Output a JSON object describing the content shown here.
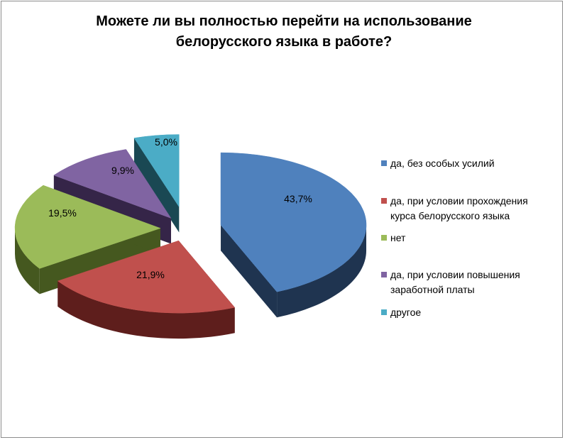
{
  "title_lines": [
    "Можете ли  вы полностью перейти на использование",
    "белорусского языка в работе?"
  ],
  "chart_data": {
    "type": "pie",
    "title": "Можете ли  вы полностью перейти на использование белорусского языка в работе?",
    "exploded": true,
    "three_d": true,
    "legend_position": "right",
    "slices": [
      {
        "label_lines": [
          "да, без особых усилий"
        ],
        "value": 43.7,
        "value_label": "43,7%",
        "color": "#4f81bd",
        "side_color": "#1f3450"
      },
      {
        "label_lines": [
          "да, при условии прохождения",
          "курса белорусского языка"
        ],
        "value": 21.9,
        "value_label": "21,9%",
        "color": "#c0504d",
        "side_color": "#5e1e1c"
      },
      {
        "label_lines": [
          "нет"
        ],
        "value": 19.5,
        "value_label": "19,5%",
        "color": "#9bbb59",
        "side_color": "#45581f"
      },
      {
        "label_lines": [
          "да, при условии повышения",
          "заработной платы"
        ],
        "value": 9.9,
        "value_label": "9,9%",
        "color": "#8064a2",
        "side_color": "#352548"
      },
      {
        "label_lines": [
          "другое"
        ],
        "value": 5.0,
        "value_label": "5,0%",
        "color": "#4bacc6",
        "side_color": "#1a4853"
      }
    ]
  }
}
